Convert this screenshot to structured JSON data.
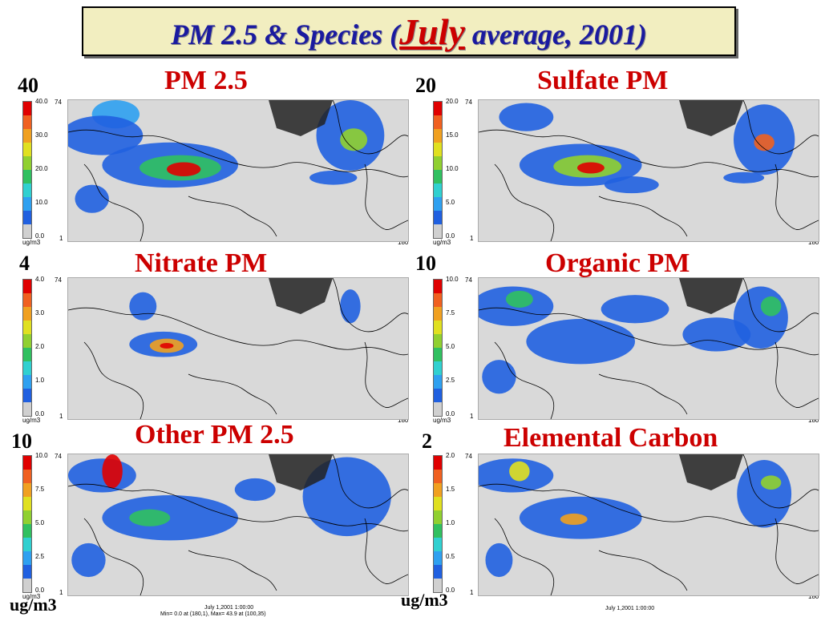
{
  "title": {
    "prefix": "PM 2.5 & Species (",
    "month": "July",
    "suffix": " average, 2001)"
  },
  "colors": {
    "scale": [
      "#d0d0d0",
      "#2060e0",
      "#2ea0f0",
      "#30d0d0",
      "#30c060",
      "#90d030",
      "#e0e020",
      "#f0a020",
      "#f06020",
      "#e00000"
    ]
  },
  "panels": [
    {
      "title": "PM 2.5",
      "max": "40",
      "ticks": [
        "40.0",
        "30.0",
        "20.0",
        "10.0",
        "0.0"
      ],
      "unit": "ug/m3",
      "axis_top": "74",
      "axis_bottom": "1",
      "axis_right": "180"
    },
    {
      "title": "Sulfate PM",
      "max": "20",
      "ticks": [
        "20.0",
        "15.0",
        "10.0",
        "5.0",
        "0.0"
      ],
      "unit": "ug/m3",
      "axis_top": "74",
      "axis_bottom": "1",
      "axis_right": "180"
    },
    {
      "title": "Nitrate PM",
      "max": "4",
      "ticks": [
        "4.0",
        "3.0",
        "2.0",
        "1.0",
        "0.0"
      ],
      "unit": "ug/m3",
      "axis_top": "74",
      "axis_bottom": "1",
      "axis_right": "180"
    },
    {
      "title": "Organic PM",
      "max": "10",
      "ticks": [
        "10.0",
        "7.5",
        "5.0",
        "2.5",
        "0.0"
      ],
      "unit": "ug/m3",
      "axis_top": "74",
      "axis_bottom": "1",
      "axis_right": "180"
    },
    {
      "title": "Other PM 2.5",
      "max": "10",
      "ticks": [
        "10.0",
        "7.5",
        "5.0",
        "2.5",
        "0.0"
      ],
      "unit": "ug/m3",
      "axis_top": "74",
      "axis_bottom": "1",
      "axis_right": ""
    },
    {
      "title": "Elemental Carbon",
      "max": "2",
      "ticks": [
        "2.0",
        "1.5",
        "1.0",
        "0.5",
        "0.0"
      ],
      "unit": "",
      "axis_top": "74",
      "axis_bottom": "1",
      "axis_right": "180"
    }
  ],
  "units_big": [
    "ug/m3",
    "ug/m3"
  ],
  "footer": [
    {
      "line1": "July 1,2001 1:00:00",
      "line2": "Min= 0.0 at (180,1), Max= 43.9 at (100,35)"
    },
    {
      "line1": "July 1,2001 1:00:00",
      "line2": ""
    }
  ]
}
